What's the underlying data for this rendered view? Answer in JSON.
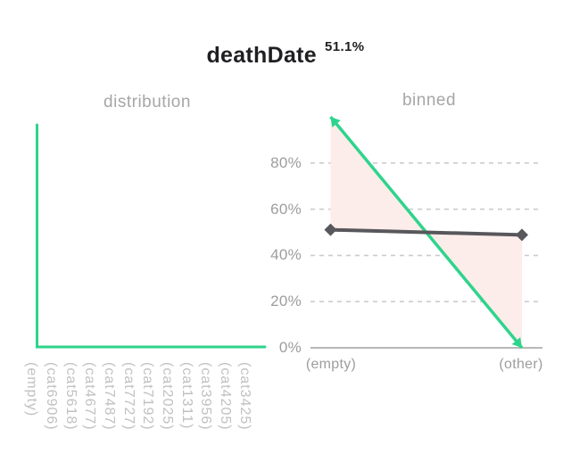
{
  "header": {
    "title": "deathDate",
    "percentage": "51.1%"
  },
  "distribution": {
    "title": "distribution",
    "categories": [
      "(empty)",
      "(cat6906)",
      "(cat5618)",
      "(cat4677)",
      "(cat7487)",
      "(cat7727)",
      "(cat7192)",
      "(cat2025)",
      "(cat1311)",
      "(cat3956)",
      "(cat4205)",
      "(cat3425)"
    ]
  },
  "binned": {
    "title": "binned",
    "categories": [
      "(empty)",
      "(other)"
    ],
    "ytick_labels": [
      "80%",
      "60%",
      "40%",
      "20%",
      "0%"
    ]
  },
  "colors": {
    "green": "#2ed48c",
    "gray": "#58575b",
    "fill": "#fcecea",
    "grid": "#cccccc",
    "axis": "#a0a0a0"
  },
  "chart_data": [
    {
      "type": "line",
      "title": "distribution",
      "categories": [
        "(empty)",
        "(cat6906)",
        "(cat5618)",
        "(cat4677)",
        "(cat7487)",
        "(cat7727)",
        "(cat7192)",
        "(cat2025)",
        "(cat1311)",
        "(cat3956)",
        "(cat4205)",
        "(cat3425)"
      ],
      "series": [
        {
          "name": "green_line",
          "values": [
            100,
            0,
            0,
            0,
            0,
            0,
            0,
            0,
            0,
            0,
            0,
            0
          ]
        }
      ],
      "interpolation": "step-before",
      "xlabel": "",
      "ylabel": "",
      "ylim": [
        0,
        100
      ],
      "grid": false,
      "legend": "none"
    },
    {
      "type": "line",
      "title": "binned",
      "categories": [
        "(empty)",
        "(other)"
      ],
      "series": [
        {
          "name": "green_line",
          "values": [
            100,
            0
          ],
          "color": "#2ed48c",
          "marker": "arrow"
        },
        {
          "name": "gray_line",
          "values": [
            51.1,
            48.9
          ],
          "color": "#58575b",
          "marker": "diamond"
        }
      ],
      "fill_between_series": true,
      "interpolation": "linear",
      "xlabel": "",
      "ylabel": "",
      "yticks": [
        0,
        20,
        40,
        60,
        80
      ],
      "ylim": [
        0,
        100
      ],
      "grid": true,
      "legend": "none"
    }
  ]
}
